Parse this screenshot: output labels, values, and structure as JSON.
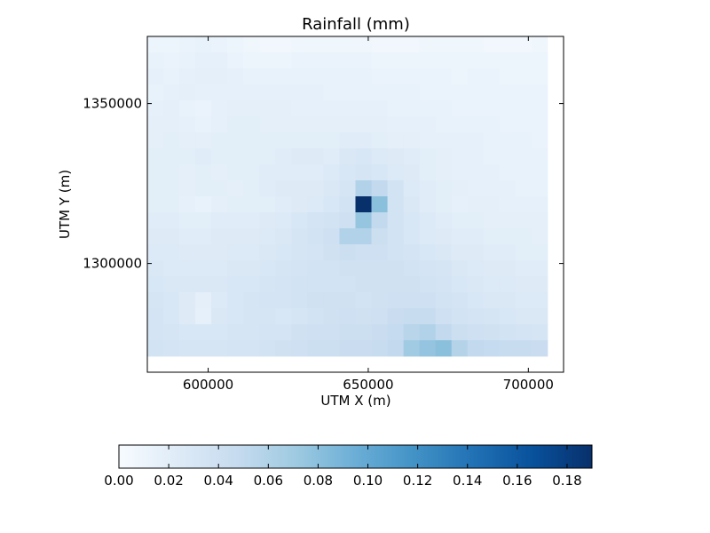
{
  "chart_data": {
    "type": "heatmap",
    "title": "Rainfall (mm)",
    "xlabel": "UTM X (m)",
    "ylabel": "UTM Y (m)",
    "xlim": [
      581000,
      711000
    ],
    "ylim": [
      1266000,
      1371000
    ],
    "xticks": [
      600000,
      650000,
      700000
    ],
    "yticks": [
      1300000,
      1350000
    ],
    "xtick_labels": [
      "600000",
      "650000",
      "700000"
    ],
    "ytick_labels": [
      "1300000",
      "1350000"
    ],
    "grid_x0": 581000,
    "grid_y_top": 1371000,
    "cell_size": 5000,
    "colormap": "Blues",
    "colormap_stops": [
      "#f7fbff",
      "#deebf7",
      "#c6dbef",
      "#9ecae1",
      "#6baed6",
      "#4292c6",
      "#2171b5",
      "#08519c",
      "#08306b"
    ],
    "vmin": 0.0,
    "vmax": 0.19,
    "colorbar": {
      "orientation": "horizontal",
      "ticks": [
        0.0,
        0.02,
        0.04,
        0.06,
        0.08,
        0.1,
        0.12,
        0.14,
        0.16,
        0.18
      ],
      "tick_labels": [
        "0.00",
        "0.02",
        "0.04",
        "0.06",
        "0.08",
        "0.10",
        "0.12",
        "0.14",
        "0.16",
        "0.18"
      ]
    },
    "grid": [
      [
        0.01,
        0.01,
        0.012,
        0.014,
        0.012,
        0.01,
        0.008,
        0.006,
        0.006,
        0.008,
        0.008,
        0.008,
        0.008,
        0.008,
        0.006,
        0.006,
        0.006,
        0.008,
        0.008,
        0.008,
        0.008,
        0.006,
        0.006,
        0.006,
        0.008
      ],
      [
        0.014,
        0.012,
        0.014,
        0.016,
        0.016,
        0.012,
        0.01,
        0.01,
        0.01,
        0.012,
        0.012,
        0.012,
        0.012,
        0.012,
        0.01,
        0.01,
        0.01,
        0.01,
        0.01,
        0.01,
        0.01,
        0.01,
        0.01,
        0.01,
        0.01
      ],
      [
        0.016,
        0.014,
        0.016,
        0.018,
        0.018,
        0.016,
        0.014,
        0.014,
        0.014,
        0.014,
        0.014,
        0.014,
        0.014,
        0.014,
        0.012,
        0.012,
        0.012,
        0.012,
        0.012,
        0.01,
        0.012,
        0.012,
        0.01,
        0.01,
        0.01
      ],
      [
        0.014,
        0.016,
        0.018,
        0.016,
        0.016,
        0.016,
        0.016,
        0.016,
        0.016,
        0.016,
        0.016,
        0.014,
        0.014,
        0.014,
        0.014,
        0.014,
        0.014,
        0.012,
        0.012,
        0.012,
        0.012,
        0.012,
        0.012,
        0.012,
        0.012
      ],
      [
        0.016,
        0.018,
        0.014,
        0.012,
        0.016,
        0.018,
        0.018,
        0.018,
        0.018,
        0.016,
        0.016,
        0.016,
        0.016,
        0.016,
        0.016,
        0.014,
        0.014,
        0.014,
        0.014,
        0.012,
        0.012,
        0.012,
        0.012,
        0.012,
        0.012
      ],
      [
        0.018,
        0.018,
        0.016,
        0.014,
        0.016,
        0.02,
        0.02,
        0.018,
        0.018,
        0.018,
        0.018,
        0.018,
        0.018,
        0.018,
        0.018,
        0.016,
        0.016,
        0.016,
        0.014,
        0.014,
        0.014,
        0.014,
        0.012,
        0.012,
        0.012
      ],
      [
        0.018,
        0.02,
        0.018,
        0.018,
        0.02,
        0.02,
        0.02,
        0.02,
        0.02,
        0.02,
        0.02,
        0.02,
        0.022,
        0.022,
        0.02,
        0.018,
        0.018,
        0.016,
        0.016,
        0.016,
        0.016,
        0.014,
        0.014,
        0.014,
        0.012
      ],
      [
        0.02,
        0.02,
        0.02,
        0.022,
        0.02,
        0.02,
        0.02,
        0.02,
        0.022,
        0.024,
        0.024,
        0.022,
        0.028,
        0.03,
        0.026,
        0.024,
        0.022,
        0.02,
        0.018,
        0.016,
        0.016,
        0.014,
        0.014,
        0.014,
        0.014
      ],
      [
        0.02,
        0.02,
        0.018,
        0.02,
        0.018,
        0.02,
        0.02,
        0.022,
        0.022,
        0.022,
        0.022,
        0.026,
        0.03,
        0.032,
        0.03,
        0.026,
        0.024,
        0.02,
        0.018,
        0.016,
        0.016,
        0.016,
        0.014,
        0.014,
        0.014
      ],
      [
        0.02,
        0.02,
        0.018,
        0.02,
        0.02,
        0.018,
        0.02,
        0.022,
        0.024,
        0.024,
        0.024,
        0.028,
        0.032,
        0.06,
        0.05,
        0.036,
        0.026,
        0.022,
        0.02,
        0.018,
        0.016,
        0.016,
        0.016,
        0.014,
        0.014
      ],
      [
        0.02,
        0.02,
        0.016,
        0.014,
        0.018,
        0.02,
        0.02,
        0.02,
        0.022,
        0.024,
        0.026,
        0.03,
        0.036,
        0.19,
        0.08,
        0.036,
        0.028,
        0.022,
        0.02,
        0.016,
        0.018,
        0.018,
        0.016,
        0.016,
        0.016
      ],
      [
        0.022,
        0.022,
        0.02,
        0.02,
        0.022,
        0.022,
        0.022,
        0.024,
        0.026,
        0.03,
        0.034,
        0.036,
        0.04,
        0.075,
        0.05,
        0.036,
        0.03,
        0.026,
        0.022,
        0.02,
        0.02,
        0.018,
        0.018,
        0.018,
        0.018
      ],
      [
        0.024,
        0.024,
        0.022,
        0.022,
        0.024,
        0.024,
        0.024,
        0.026,
        0.028,
        0.032,
        0.036,
        0.04,
        0.06,
        0.06,
        0.042,
        0.036,
        0.03,
        0.026,
        0.024,
        0.022,
        0.022,
        0.02,
        0.02,
        0.02,
        0.018
      ],
      [
        0.026,
        0.026,
        0.024,
        0.024,
        0.024,
        0.026,
        0.026,
        0.028,
        0.03,
        0.032,
        0.034,
        0.038,
        0.042,
        0.04,
        0.04,
        0.036,
        0.034,
        0.03,
        0.028,
        0.024,
        0.024,
        0.022,
        0.022,
        0.02,
        0.02
      ],
      [
        0.028,
        0.026,
        0.026,
        0.026,
        0.026,
        0.028,
        0.028,
        0.03,
        0.032,
        0.034,
        0.036,
        0.036,
        0.038,
        0.038,
        0.038,
        0.038,
        0.036,
        0.034,
        0.032,
        0.028,
        0.026,
        0.024,
        0.024,
        0.022,
        0.022
      ],
      [
        0.03,
        0.028,
        0.028,
        0.028,
        0.028,
        0.03,
        0.03,
        0.032,
        0.034,
        0.036,
        0.036,
        0.036,
        0.036,
        0.038,
        0.038,
        0.038,
        0.038,
        0.036,
        0.034,
        0.03,
        0.028,
        0.026,
        0.026,
        0.024,
        0.024
      ],
      [
        0.032,
        0.03,
        0.024,
        0.018,
        0.026,
        0.03,
        0.032,
        0.034,
        0.034,
        0.036,
        0.038,
        0.038,
        0.038,
        0.036,
        0.038,
        0.04,
        0.04,
        0.04,
        0.036,
        0.034,
        0.03,
        0.028,
        0.028,
        0.026,
        0.026
      ],
      [
        0.034,
        0.03,
        0.024,
        0.016,
        0.028,
        0.03,
        0.032,
        0.032,
        0.03,
        0.032,
        0.036,
        0.038,
        0.04,
        0.038,
        0.04,
        0.044,
        0.046,
        0.046,
        0.04,
        0.036,
        0.034,
        0.032,
        0.03,
        0.028,
        0.028
      ],
      [
        0.034,
        0.032,
        0.03,
        0.03,
        0.03,
        0.032,
        0.032,
        0.034,
        0.034,
        0.038,
        0.04,
        0.04,
        0.042,
        0.042,
        0.044,
        0.048,
        0.056,
        0.06,
        0.05,
        0.042,
        0.04,
        0.038,
        0.036,
        0.034,
        0.032
      ],
      [
        0.036,
        0.034,
        0.032,
        0.032,
        0.032,
        0.034,
        0.034,
        0.036,
        0.038,
        0.04,
        0.042,
        0.042,
        0.044,
        0.044,
        0.046,
        0.05,
        0.07,
        0.076,
        0.08,
        0.058,
        0.05,
        0.048,
        0.046,
        0.046,
        0.044
      ]
    ]
  }
}
